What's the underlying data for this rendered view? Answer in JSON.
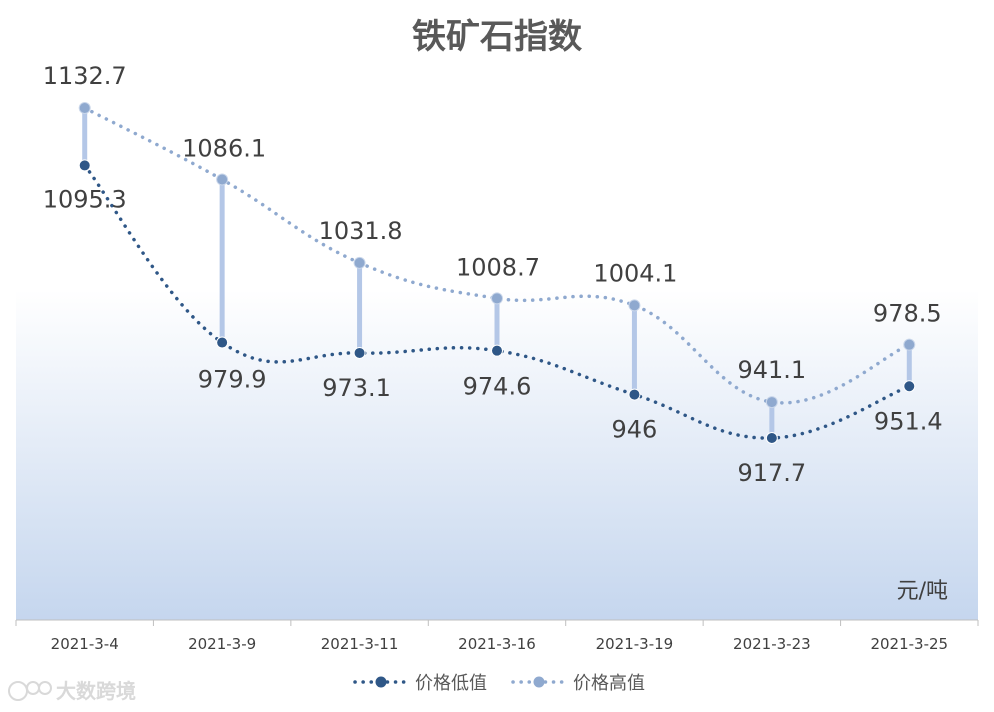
{
  "chart_data": {
    "type": "line",
    "title": "铁矿石指数",
    "unit": "元/吨",
    "categories": [
      "2021-3-4",
      "2021-3-9",
      "2021-3-11",
      "2021-3-16",
      "2021-3-19",
      "2021-3-23",
      "2021-3-25"
    ],
    "series": [
      {
        "name": "价格低值",
        "values": [
          1095.3,
          979.9,
          973.1,
          974.6,
          946,
          917.7,
          951.4
        ],
        "labels": [
          "1095.3",
          "979.9",
          "973.1",
          "974.6",
          "946",
          "917.7",
          "951.4"
        ],
        "color": "#2f5787"
      },
      {
        "name": "价格高值",
        "values": [
          1132.7,
          1086.1,
          1031.8,
          1008.7,
          1004.1,
          941.1,
          978.5
        ],
        "labels": [
          "1132.7",
          "1086.1",
          "1031.8",
          "1008.7",
          "1004.1",
          "941.1",
          "978.5"
        ],
        "color": "#8fa9cf"
      }
    ],
    "drop_line_color": "#b4c7e7",
    "plot_gradient": [
      "#ffffff",
      "#c5d6ee"
    ],
    "legend_position": "bottom",
    "grid": false,
    "ylim": [
      750,
      1160
    ]
  },
  "watermark": "大数跨境"
}
